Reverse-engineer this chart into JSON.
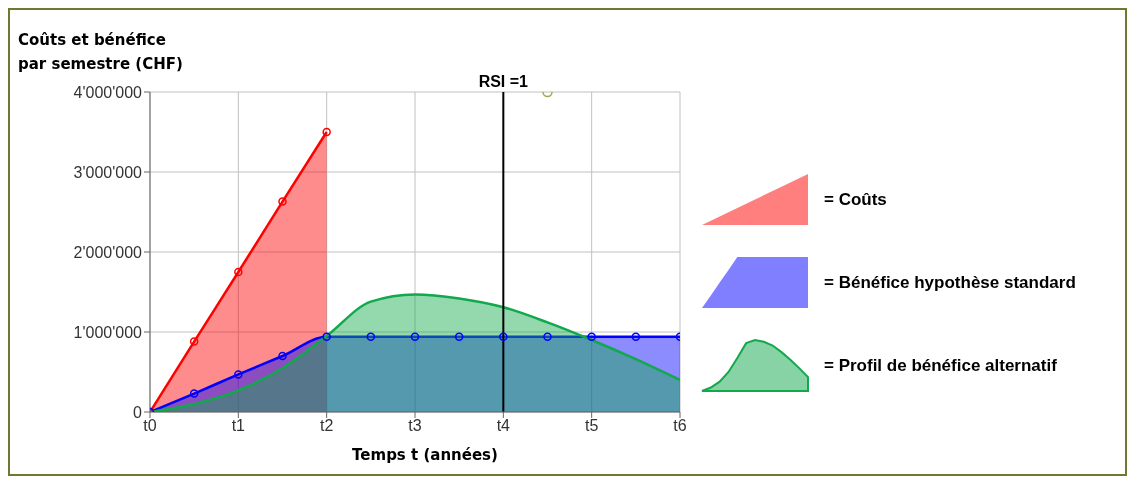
{
  "chart_data": {
    "type": "area",
    "ylabel": "Coûts et bénéfice\npar semestre (CHF)",
    "xlabel": "Temps t (années)",
    "categories": [
      "t0",
      null,
      "t1",
      null,
      "t2",
      null,
      "t3",
      null,
      "t4",
      null,
      "t5",
      null,
      "t6"
    ],
    "series": [
      {
        "name": "= Coûts",
        "color": "#ff0000",
        "marker": "circle",
        "values": [
          0,
          880000,
          1750000,
          2630000,
          3500000,
          null,
          null,
          null,
          null,
          null,
          null,
          null,
          null
        ]
      },
      {
        "name": "= Bénéfice hypothèse standard",
        "color": "#0000ff",
        "marker": "circle",
        "values": [
          0,
          230000,
          470000,
          700000,
          940000,
          940000,
          940000,
          940000,
          940000,
          940000,
          940000,
          940000,
          940000
        ]
      },
      {
        "name": "= Profil de bénéfice alternatif",
        "color": "#12a84c",
        "marker": "none",
        "values": [
          0,
          100000,
          270000,
          550000,
          950000,
          1380000,
          1470000,
          1420000,
          1310000,
          1120000,
          900000,
          660000,
          400000
        ]
      },
      {
        "type": "scatter",
        "color": "#9aaa50",
        "marker": "circle",
        "values": [
          null,
          null,
          null,
          null,
          null,
          null,
          null,
          null,
          null,
          4000000,
          null,
          null,
          null
        ]
      }
    ],
    "ylim": [
      0,
      4000000
    ],
    "yticks": [
      0,
      {
        "value": 1000000,
        "label": "1'000'000"
      },
      {
        "value": 2000000,
        "label": "2'000'000"
      },
      {
        "value": 3000000,
        "label": "3'000'000"
      },
      {
        "value": 4000000,
        "label": "4'000'000"
      }
    ],
    "ref_lines": [
      {
        "axis": "x",
        "value": "t4",
        "label": "RSI =1",
        "color": "#000000"
      }
    ],
    "grid": true,
    "legend": "right"
  }
}
